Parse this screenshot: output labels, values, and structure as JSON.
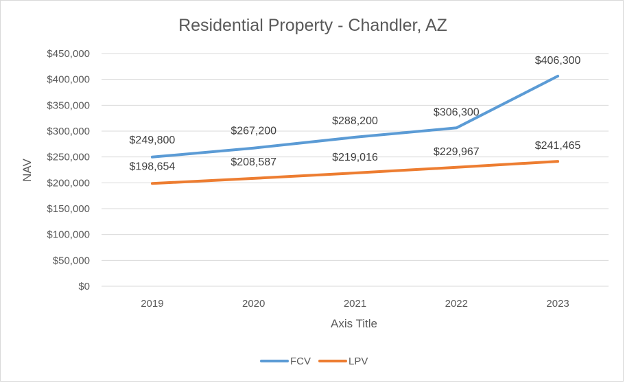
{
  "chart_data": {
    "type": "line",
    "title": "Residential Property - Chandler, AZ",
    "xlabel": "Axis Title",
    "ylabel": "NAV",
    "x": [
      "2019",
      "2020",
      "2021",
      "2022",
      "2023"
    ],
    "ylim": [
      0,
      450000
    ],
    "yticks": [
      "$0",
      "$50,000",
      "$100,000",
      "$150,000",
      "$200,000",
      "$250,000",
      "$300,000",
      "$350,000",
      "$400,000",
      "$450,000"
    ],
    "grid": true,
    "legend_position": "bottom",
    "series": [
      {
        "name": "FCV",
        "color": "#5b9bd5",
        "values": [
          249800,
          267200,
          288200,
          306300,
          406300
        ],
        "labels": [
          "$249,800",
          "$267,200",
          "$288,200",
          "$306,300",
          "$406,300"
        ]
      },
      {
        "name": "LPV",
        "color": "#ed7d31",
        "values": [
          198654,
          208587,
          219016,
          229967,
          241465
        ],
        "labels": [
          "$198,654",
          "$208,587",
          "$219,016",
          "$229,967",
          "$241,465"
        ]
      }
    ]
  }
}
